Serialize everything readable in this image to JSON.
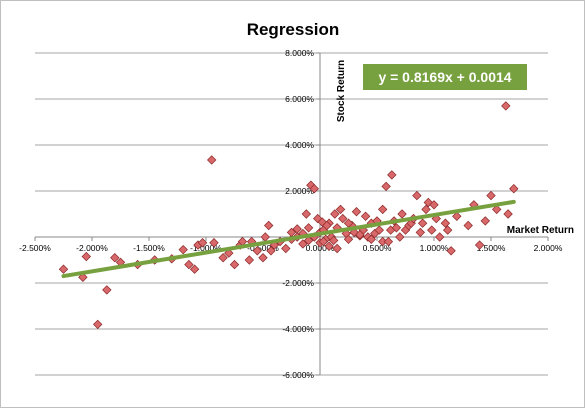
{
  "chart_data": {
    "type": "scatter",
    "title": "Regression",
    "xlabel": "Market Return",
    "ylabel": "Stock Return",
    "xlim": [
      -0.025,
      0.02
    ],
    "ylim": [
      -0.06,
      0.08
    ],
    "x_ticks": [
      -0.025,
      -0.02,
      -0.015,
      -0.01,
      -0.005,
      0,
      0.005,
      0.01,
      0.015,
      0.02
    ],
    "x_tick_labels": [
      "-2.500%",
      "-2.000%",
      "-1.500%",
      "-1.000%",
      "-0.500%",
      "0.000%",
      "0.500%",
      "1.000%",
      "1.500%",
      "2.000%"
    ],
    "y_ticks": [
      0.08,
      0.06,
      0.04,
      0.02,
      0,
      -0.02,
      -0.04,
      -0.06
    ],
    "y_tick_labels": [
      "8.000%",
      "6.000%",
      "4.000%",
      "2.000%",
      "",
      "-2.000%",
      "-4.000%",
      "-6.000%"
    ],
    "grid": "horizontal",
    "legend": "none",
    "colors": {
      "marker_fill": "#d9686a",
      "marker_stroke": "#8b2a2a",
      "trendline": "#77a03e",
      "equation_box": "#77a03e",
      "gridline": "#888888"
    },
    "trendline": {
      "slope": 0.8169,
      "intercept": 0.0014,
      "x_range": [
        -0.0225,
        0.017
      ]
    },
    "equation_label": "y = 0.8169x + 0.0014",
    "points": [
      [
        -0.0225,
        -0.014
      ],
      [
        -0.0208,
        -0.0175
      ],
      [
        -0.0205,
        -0.0085
      ],
      [
        -0.0195,
        -0.038
      ],
      [
        -0.0187,
        -0.023
      ],
      [
        -0.018,
        -0.009
      ],
      [
        -0.0175,
        -0.011
      ],
      [
        -0.016,
        -0.012
      ],
      [
        -0.0145,
        -0.01
      ],
      [
        -0.013,
        -0.0095
      ],
      [
        -0.012,
        -0.0055
      ],
      [
        -0.0115,
        -0.012
      ],
      [
        -0.011,
        -0.014
      ],
      [
        -0.0107,
        -0.0035
      ],
      [
        -0.0103,
        -0.0025
      ],
      [
        -0.0095,
        0.0335
      ],
      [
        -0.0093,
        -0.0025
      ],
      [
        -0.0085,
        -0.009
      ],
      [
        -0.008,
        -0.007
      ],
      [
        -0.0075,
        -0.012
      ],
      [
        -0.007,
        -0.0035
      ],
      [
        -0.0068,
        -0.002
      ],
      [
        -0.0062,
        -0.01
      ],
      [
        -0.006,
        -0.002
      ],
      [
        -0.0055,
        -0.006
      ],
      [
        -0.005,
        -0.009
      ],
      [
        -0.0048,
        0.0
      ],
      [
        -0.0043,
        -0.006
      ],
      [
        -0.004,
        -0.0035
      ],
      [
        -0.0035,
        -0.002
      ],
      [
        -0.003,
        -0.005
      ],
      [
        -0.0025,
        -0.001
      ],
      [
        -0.002,
        0.0035
      ],
      [
        -0.0015,
        0.0015
      ],
      [
        -0.001,
        0.004
      ],
      [
        -0.0005,
        0.0
      ],
      [
        0.0,
        -0.0025
      ],
      [
        0.0,
        0.002
      ],
      [
        0.0003,
        0.003
      ],
      [
        0.0005,
        -0.001
      ],
      [
        0.0008,
        0.006
      ],
      [
        0.001,
        0.0
      ],
      [
        0.0013,
        0.01
      ],
      [
        0.0015,
        -0.005
      ],
      [
        -0.0012,
        0.01
      ],
      [
        -0.0008,
        0.0225
      ],
      [
        -0.0005,
        0.021
      ],
      [
        -0.0002,
        0.008
      ],
      [
        0.0003,
        -0.002
      ],
      [
        0.0008,
        -0.004
      ],
      [
        0.0012,
        -0.0015
      ],
      [
        0.0015,
        0.004
      ],
      [
        0.0018,
        0.012
      ],
      [
        0.002,
        0.008
      ],
      [
        0.0023,
        0.0015
      ],
      [
        0.0025,
        -0.001
      ],
      [
        0.0028,
        0.005
      ],
      [
        0.003,
        0.002
      ],
      [
        0.0032,
        0.011
      ],
      [
        0.0035,
        0.0005
      ],
      [
        0.0038,
        0.003
      ],
      [
        0.004,
        0.009
      ],
      [
        0.0042,
        0.0
      ],
      [
        0.0045,
        0.006
      ],
      [
        0.0048,
        0.0015
      ],
      [
        0.005,
        0.007
      ],
      [
        0.0052,
        0.003
      ],
      [
        0.0055,
        0.012
      ],
      [
        0.0055,
        -0.002
      ],
      [
        0.0058,
        0.022
      ],
      [
        0.006,
        -0.002
      ],
      [
        0.0062,
        0.003
      ],
      [
        0.0063,
        0.027
      ],
      [
        0.0065,
        0.007
      ],
      [
        0.0067,
        0.004
      ],
      [
        0.007,
        0.0
      ],
      [
        0.0072,
        0.01
      ],
      [
        0.0075,
        0.003
      ],
      [
        0.0078,
        0.005
      ],
      [
        0.008,
        0.006
      ],
      [
        0.0082,
        0.008
      ],
      [
        0.0085,
        0.018
      ],
      [
        0.0088,
        0.002
      ],
      [
        0.009,
        0.006
      ],
      [
        0.0093,
        0.012
      ],
      [
        0.0095,
        0.015
      ],
      [
        0.0098,
        0.003
      ],
      [
        0.01,
        0.014
      ],
      [
        0.0102,
        0.008
      ],
      [
        0.0105,
        0.0
      ],
      [
        0.011,
        0.006
      ],
      [
        0.0112,
        0.003
      ],
      [
        0.0115,
        -0.006
      ],
      [
        0.012,
        0.009
      ],
      [
        0.013,
        0.005
      ],
      [
        0.0135,
        0.014
      ],
      [
        0.014,
        -0.0035
      ],
      [
        0.0145,
        0.007
      ],
      [
        0.015,
        0.018
      ],
      [
        0.0155,
        0.012
      ],
      [
        0.0163,
        0.057
      ],
      [
        0.0165,
        0.01
      ],
      [
        0.017,
        0.021
      ],
      [
        -0.0025,
        0.002
      ],
      [
        -0.002,
        0.0
      ],
      [
        -0.0015,
        -0.003
      ],
      [
        -0.001,
        -0.0015
      ],
      [
        -0.0045,
        0.005
      ],
      [
        0.0002,
        0.0065
      ],
      [
        0.0006,
        0.005
      ],
      [
        0.0025,
        0.006
      ],
      [
        0.0035,
        0.001
      ],
      [
        0.0045,
        -0.001
      ]
    ]
  }
}
